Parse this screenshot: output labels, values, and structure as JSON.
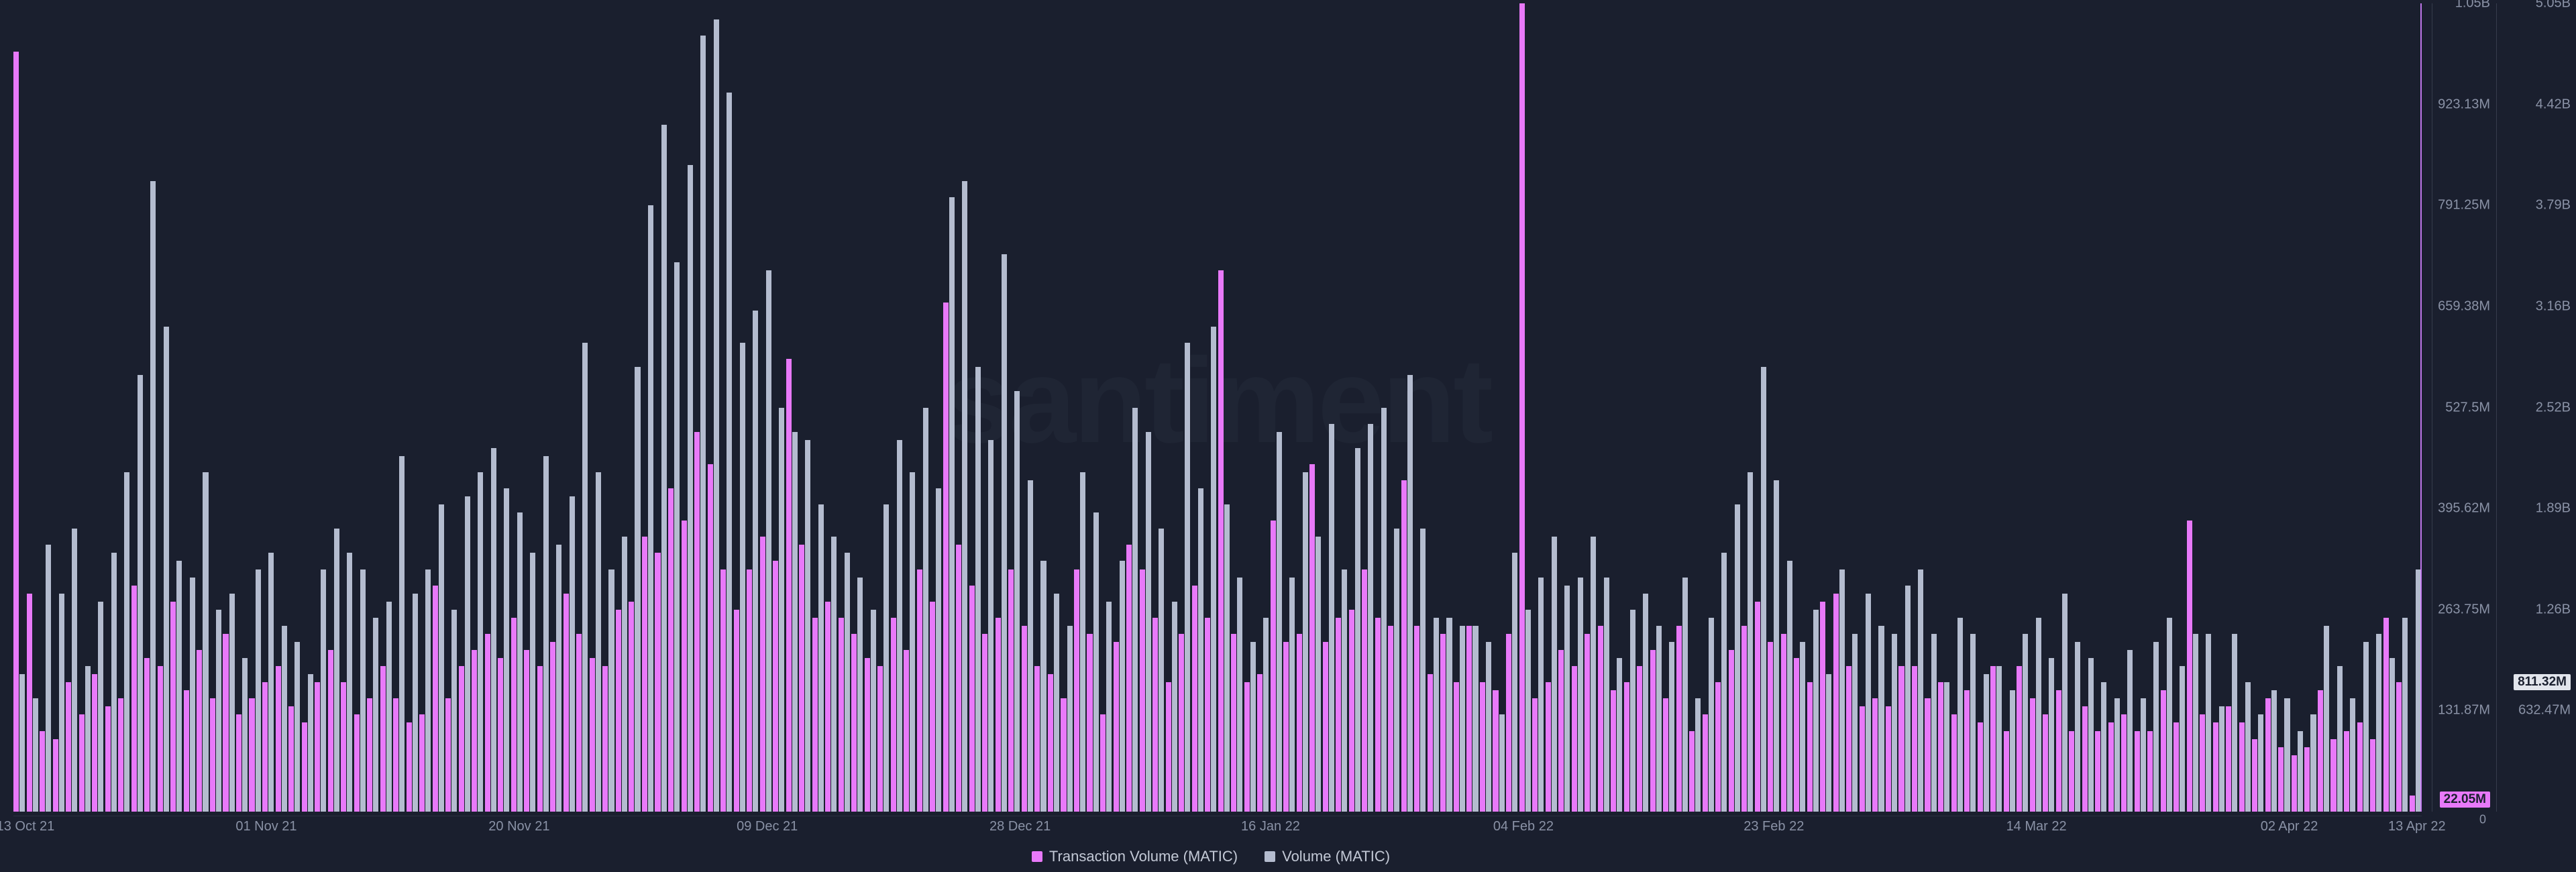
{
  "chart": {
    "type": "bar",
    "background_color": "#1a1f2e",
    "watermark_text": "santiment",
    "watermark_color": "rgba(120,130,155,0.06)",
    "series": [
      {
        "key": "tx",
        "label": "Transaction Volume (MATIC)",
        "color": "#e879f9"
      },
      {
        "key": "vol",
        "label": "Volume (MATIC)",
        "color": "#b4bccf"
      }
    ],
    "y_axis_left": {
      "min": 0,
      "max": 1050000000,
      "ticks": [
        "131.87M",
        "263.75M",
        "395.62M",
        "527.5M",
        "659.38M",
        "791.25M",
        "923.13M",
        "1.05B"
      ],
      "current_badge": "22.05M",
      "zero_label": "0"
    },
    "y_axis_right": {
      "min": 0,
      "max": 5050000000,
      "ticks": [
        "632.47M",
        "1.26B",
        "1.89B",
        "2.52B",
        "3.16B",
        "3.79B",
        "4.42B",
        "5.05B"
      ],
      "current_badge": "811.32M"
    },
    "x_ticks": [
      {
        "pos": 0.005,
        "label": "13 Oct 21"
      },
      {
        "pos": 0.105,
        "label": "01 Nov 21"
      },
      {
        "pos": 0.21,
        "label": "20 Nov 21"
      },
      {
        "pos": 0.313,
        "label": "09 Dec 21"
      },
      {
        "pos": 0.418,
        "label": "28 Dec 21"
      },
      {
        "pos": 0.522,
        "label": "16 Jan 22"
      },
      {
        "pos": 0.627,
        "label": "04 Feb 22"
      },
      {
        "pos": 0.731,
        "label": "23 Feb 22"
      },
      {
        "pos": 0.84,
        "label": "14 Mar 22"
      },
      {
        "pos": 0.945,
        "label": "02 Apr 22"
      },
      {
        "pos": 0.998,
        "label": "13 Apr 22"
      }
    ],
    "data": [
      {
        "tx": 0.94,
        "vol": 0.17
      },
      {
        "tx": 0.27,
        "vol": 0.14
      },
      {
        "tx": 0.1,
        "vol": 0.33
      },
      {
        "tx": 0.09,
        "vol": 0.27
      },
      {
        "tx": 0.16,
        "vol": 0.35
      },
      {
        "tx": 0.12,
        "vol": 0.18
      },
      {
        "tx": 0.17,
        "vol": 0.26
      },
      {
        "tx": 0.13,
        "vol": 0.32
      },
      {
        "tx": 0.14,
        "vol": 0.42
      },
      {
        "tx": 0.28,
        "vol": 0.54
      },
      {
        "tx": 0.19,
        "vol": 0.78
      },
      {
        "tx": 0.18,
        "vol": 0.6
      },
      {
        "tx": 0.26,
        "vol": 0.31
      },
      {
        "tx": 0.15,
        "vol": 0.29
      },
      {
        "tx": 0.2,
        "vol": 0.42
      },
      {
        "tx": 0.14,
        "vol": 0.25
      },
      {
        "tx": 0.22,
        "vol": 0.27
      },
      {
        "tx": 0.12,
        "vol": 0.19
      },
      {
        "tx": 0.14,
        "vol": 0.3
      },
      {
        "tx": 0.16,
        "vol": 0.32
      },
      {
        "tx": 0.18,
        "vol": 0.23
      },
      {
        "tx": 0.13,
        "vol": 0.21
      },
      {
        "tx": 0.11,
        "vol": 0.17
      },
      {
        "tx": 0.16,
        "vol": 0.3
      },
      {
        "tx": 0.2,
        "vol": 0.35
      },
      {
        "tx": 0.16,
        "vol": 0.32
      },
      {
        "tx": 0.12,
        "vol": 0.3
      },
      {
        "tx": 0.14,
        "vol": 0.24
      },
      {
        "tx": 0.18,
        "vol": 0.26
      },
      {
        "tx": 0.14,
        "vol": 0.44
      },
      {
        "tx": 0.11,
        "vol": 0.27
      },
      {
        "tx": 0.12,
        "vol": 0.3
      },
      {
        "tx": 0.28,
        "vol": 0.38
      },
      {
        "tx": 0.14,
        "vol": 0.25
      },
      {
        "tx": 0.18,
        "vol": 0.39
      },
      {
        "tx": 0.2,
        "vol": 0.42
      },
      {
        "tx": 0.22,
        "vol": 0.45
      },
      {
        "tx": 0.19,
        "vol": 0.4
      },
      {
        "tx": 0.24,
        "vol": 0.37
      },
      {
        "tx": 0.2,
        "vol": 0.32
      },
      {
        "tx": 0.18,
        "vol": 0.44
      },
      {
        "tx": 0.21,
        "vol": 0.33
      },
      {
        "tx": 0.27,
        "vol": 0.39
      },
      {
        "tx": 0.22,
        "vol": 0.58
      },
      {
        "tx": 0.19,
        "vol": 0.42
      },
      {
        "tx": 0.18,
        "vol": 0.3
      },
      {
        "tx": 0.25,
        "vol": 0.34
      },
      {
        "tx": 0.26,
        "vol": 0.55
      },
      {
        "tx": 0.34,
        "vol": 0.75
      },
      {
        "tx": 0.32,
        "vol": 0.85
      },
      {
        "tx": 0.4,
        "vol": 0.68
      },
      {
        "tx": 0.36,
        "vol": 0.8
      },
      {
        "tx": 0.47,
        "vol": 0.96
      },
      {
        "tx": 0.43,
        "vol": 0.98
      },
      {
        "tx": 0.3,
        "vol": 0.89
      },
      {
        "tx": 0.25,
        "vol": 0.58
      },
      {
        "tx": 0.3,
        "vol": 0.62
      },
      {
        "tx": 0.34,
        "vol": 0.67
      },
      {
        "tx": 0.31,
        "vol": 0.5
      },
      {
        "tx": 0.56,
        "vol": 0.47
      },
      {
        "tx": 0.33,
        "vol": 0.46
      },
      {
        "tx": 0.24,
        "vol": 0.38
      },
      {
        "tx": 0.26,
        "vol": 0.34
      },
      {
        "tx": 0.24,
        "vol": 0.32
      },
      {
        "tx": 0.22,
        "vol": 0.29
      },
      {
        "tx": 0.19,
        "vol": 0.25
      },
      {
        "tx": 0.18,
        "vol": 0.38
      },
      {
        "tx": 0.24,
        "vol": 0.46
      },
      {
        "tx": 0.2,
        "vol": 0.42
      },
      {
        "tx": 0.3,
        "vol": 0.5
      },
      {
        "tx": 0.26,
        "vol": 0.4
      },
      {
        "tx": 0.63,
        "vol": 0.76
      },
      {
        "tx": 0.33,
        "vol": 0.78
      },
      {
        "tx": 0.28,
        "vol": 0.55
      },
      {
        "tx": 0.22,
        "vol": 0.46
      },
      {
        "tx": 0.24,
        "vol": 0.69
      },
      {
        "tx": 0.3,
        "vol": 0.52
      },
      {
        "tx": 0.23,
        "vol": 0.41
      },
      {
        "tx": 0.18,
        "vol": 0.31
      },
      {
        "tx": 0.17,
        "vol": 0.27
      },
      {
        "tx": 0.14,
        "vol": 0.23
      },
      {
        "tx": 0.3,
        "vol": 0.42
      },
      {
        "tx": 0.22,
        "vol": 0.37
      },
      {
        "tx": 0.12,
        "vol": 0.26
      },
      {
        "tx": 0.21,
        "vol": 0.31
      },
      {
        "tx": 0.33,
        "vol": 0.5
      },
      {
        "tx": 0.3,
        "vol": 0.47
      },
      {
        "tx": 0.24,
        "vol": 0.35
      },
      {
        "tx": 0.16,
        "vol": 0.26
      },
      {
        "tx": 0.22,
        "vol": 0.58
      },
      {
        "tx": 0.28,
        "vol": 0.4
      },
      {
        "tx": 0.24,
        "vol": 0.6
      },
      {
        "tx": 0.67,
        "vol": 0.38
      },
      {
        "tx": 0.22,
        "vol": 0.29
      },
      {
        "tx": 0.16,
        "vol": 0.21
      },
      {
        "tx": 0.17,
        "vol": 0.24
      },
      {
        "tx": 0.36,
        "vol": 0.47
      },
      {
        "tx": 0.21,
        "vol": 0.29
      },
      {
        "tx": 0.22,
        "vol": 0.42
      },
      {
        "tx": 0.43,
        "vol": 0.34
      },
      {
        "tx": 0.21,
        "vol": 0.48
      },
      {
        "tx": 0.24,
        "vol": 0.3
      },
      {
        "tx": 0.25,
        "vol": 0.45
      },
      {
        "tx": 0.3,
        "vol": 0.48
      },
      {
        "tx": 0.24,
        "vol": 0.5
      },
      {
        "tx": 0.23,
        "vol": 0.35
      },
      {
        "tx": 0.41,
        "vol": 0.54
      },
      {
        "tx": 0.23,
        "vol": 0.35
      },
      {
        "tx": 0.17,
        "vol": 0.24
      },
      {
        "tx": 0.22,
        "vol": 0.24
      },
      {
        "tx": 0.16,
        "vol": 0.23
      },
      {
        "tx": 0.23,
        "vol": 0.23
      },
      {
        "tx": 0.16,
        "vol": 0.21
      },
      {
        "tx": 0.15,
        "vol": 0.12
      },
      {
        "tx": 0.22,
        "vol": 0.32
      },
      {
        "tx": 1.0,
        "vol": 0.25
      },
      {
        "tx": 0.14,
        "vol": 0.29
      },
      {
        "tx": 0.16,
        "vol": 0.34
      },
      {
        "tx": 0.2,
        "vol": 0.28
      },
      {
        "tx": 0.18,
        "vol": 0.29
      },
      {
        "tx": 0.22,
        "vol": 0.34
      },
      {
        "tx": 0.23,
        "vol": 0.29
      },
      {
        "tx": 0.15,
        "vol": 0.19
      },
      {
        "tx": 0.16,
        "vol": 0.25
      },
      {
        "tx": 0.18,
        "vol": 0.27
      },
      {
        "tx": 0.2,
        "vol": 0.23
      },
      {
        "tx": 0.14,
        "vol": 0.21
      },
      {
        "tx": 0.23,
        "vol": 0.29
      },
      {
        "tx": 0.1,
        "vol": 0.14
      },
      {
        "tx": 0.12,
        "vol": 0.24
      },
      {
        "tx": 0.16,
        "vol": 0.32
      },
      {
        "tx": 0.2,
        "vol": 0.38
      },
      {
        "tx": 0.23,
        "vol": 0.42
      },
      {
        "tx": 0.26,
        "vol": 0.55
      },
      {
        "tx": 0.21,
        "vol": 0.41
      },
      {
        "tx": 0.22,
        "vol": 0.31
      },
      {
        "tx": 0.19,
        "vol": 0.21
      },
      {
        "tx": 0.16,
        "vol": 0.25
      },
      {
        "tx": 0.26,
        "vol": 0.17
      },
      {
        "tx": 0.27,
        "vol": 0.3
      },
      {
        "tx": 0.18,
        "vol": 0.22
      },
      {
        "tx": 0.13,
        "vol": 0.27
      },
      {
        "tx": 0.14,
        "vol": 0.23
      },
      {
        "tx": 0.13,
        "vol": 0.22
      },
      {
        "tx": 0.18,
        "vol": 0.28
      },
      {
        "tx": 0.18,
        "vol": 0.3
      },
      {
        "tx": 0.14,
        "vol": 0.22
      },
      {
        "tx": 0.16,
        "vol": 0.16
      },
      {
        "tx": 0.12,
        "vol": 0.24
      },
      {
        "tx": 0.15,
        "vol": 0.22
      },
      {
        "tx": 0.11,
        "vol": 0.17
      },
      {
        "tx": 0.18,
        "vol": 0.18
      },
      {
        "tx": 0.1,
        "vol": 0.15
      },
      {
        "tx": 0.18,
        "vol": 0.22
      },
      {
        "tx": 0.14,
        "vol": 0.24
      },
      {
        "tx": 0.12,
        "vol": 0.19
      },
      {
        "tx": 0.15,
        "vol": 0.27
      },
      {
        "tx": 0.1,
        "vol": 0.21
      },
      {
        "tx": 0.13,
        "vol": 0.19
      },
      {
        "tx": 0.1,
        "vol": 0.16
      },
      {
        "tx": 0.11,
        "vol": 0.14
      },
      {
        "tx": 0.12,
        "vol": 0.2
      },
      {
        "tx": 0.1,
        "vol": 0.14
      },
      {
        "tx": 0.1,
        "vol": 0.21
      },
      {
        "tx": 0.15,
        "vol": 0.24
      },
      {
        "tx": 0.11,
        "vol": 0.18
      },
      {
        "tx": 0.36,
        "vol": 0.22
      },
      {
        "tx": 0.12,
        "vol": 0.22
      },
      {
        "tx": 0.11,
        "vol": 0.13
      },
      {
        "tx": 0.13,
        "vol": 0.22
      },
      {
        "tx": 0.11,
        "vol": 0.16
      },
      {
        "tx": 0.09,
        "vol": 0.12
      },
      {
        "tx": 0.14,
        "vol": 0.15
      },
      {
        "tx": 0.08,
        "vol": 0.14
      },
      {
        "tx": 0.07,
        "vol": 0.1
      },
      {
        "tx": 0.08,
        "vol": 0.12
      },
      {
        "tx": 0.15,
        "vol": 0.23
      },
      {
        "tx": 0.09,
        "vol": 0.18
      },
      {
        "tx": 0.1,
        "vol": 0.14
      },
      {
        "tx": 0.11,
        "vol": 0.21
      },
      {
        "tx": 0.09,
        "vol": 0.22
      },
      {
        "tx": 0.24,
        "vol": 0.19
      },
      {
        "tx": 0.16,
        "vol": 0.24
      },
      {
        "tx": 0.02,
        "vol": 0.3
      }
    ]
  }
}
